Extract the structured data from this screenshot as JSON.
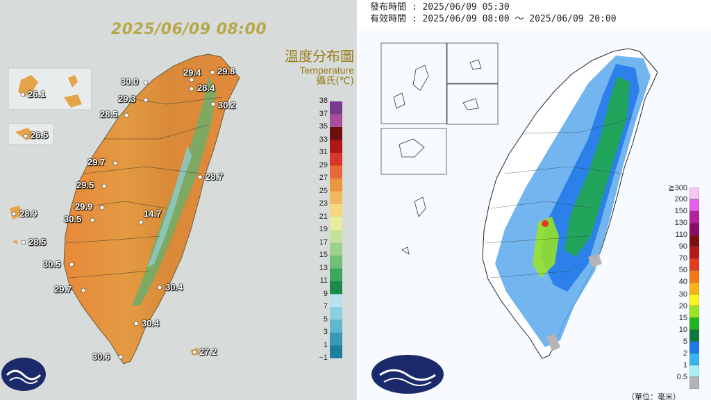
{
  "temperature_map": {
    "timestamp": "2025/06/09 08:00",
    "legend": {
      "title_zh": "溫度分布圖",
      "title_en": "Temperature",
      "unit": "攝氏(℃)",
      "ticks": [
        "38",
        "37",
        "35",
        "33",
        "31",
        "29",
        "27",
        "25",
        "23",
        "21",
        "19",
        "17",
        "15",
        "13",
        "11",
        "9",
        "7",
        "5",
        "3",
        "1",
        "−1"
      ],
      "colors": [
        "#7a3a8f",
        "#a64ea0",
        "#6e0e0e",
        "#b01818",
        "#d8362a",
        "#e8683a",
        "#ee9440",
        "#f3b65c",
        "#f4d77e",
        "#e8eca0",
        "#c7e19a",
        "#9fd08c",
        "#6fbf76",
        "#3ea65c",
        "#1d8a4c",
        "#b6e2ec",
        "#8ccfe0",
        "#5fb6cf",
        "#3a98b8",
        "#1d7ea0"
      ]
    },
    "stations": [
      {
        "value": "26.1"
      },
      {
        "value": "26.5"
      },
      {
        "value": "30.0"
      },
      {
        "value": "29.4"
      },
      {
        "value": "29.8"
      },
      {
        "value": "28.4"
      },
      {
        "value": "29.3"
      },
      {
        "value": "28.5"
      },
      {
        "value": "30.2"
      },
      {
        "value": "29.7"
      },
      {
        "value": "28.7"
      },
      {
        "value": "29.5"
      },
      {
        "value": "29.9"
      },
      {
        "value": "28.9"
      },
      {
        "value": "30.5"
      },
      {
        "value": "14.7"
      },
      {
        "value": "28.5"
      },
      {
        "value": "30.5"
      },
      {
        "value": "29.7"
      },
      {
        "value": "30.4"
      },
      {
        "value": "30.4"
      },
      {
        "value": "30.6"
      },
      {
        "value": "27.2"
      }
    ]
  },
  "rain_map": {
    "issued_label": "發布時間 : 2025/06/09 05:30",
    "valid_label": "有效時間 : 2025/06/09 08:00 ～ 2025/06/09 20:00",
    "legend": {
      "ticks": [
        "≧300",
        "200",
        "150",
        "130",
        "110",
        "90",
        "70",
        "50",
        "40",
        "30",
        "20",
        "15",
        "10",
        "5",
        "2",
        "1",
        "0.5"
      ],
      "colors": [
        "#f7c6f5",
        "#e55cf0",
        "#b8209e",
        "#8a0c6c",
        "#7a1010",
        "#b81818",
        "#e83a1e",
        "#f4781a",
        "#f8b21a",
        "#fff21a",
        "#9ae61e",
        "#1eb41e",
        "#0f7a3a",
        "#1e78e8",
        "#38b4f0",
        "#a8eef8",
        "#b4b4b4"
      ],
      "unit_note": "（單位：毫米）"
    }
  }
}
